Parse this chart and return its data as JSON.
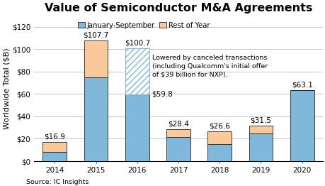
{
  "years": [
    "2014",
    "2015",
    "2016",
    "2017",
    "2018",
    "2019",
    "2020"
  ],
  "jan_sep": [
    8.0,
    75.0,
    59.8,
    21.5,
    15.5,
    24.5,
    63.1
  ],
  "rest_of_year": [
    8.9,
    32.7,
    0.0,
    6.9,
    11.1,
    7.0,
    0.0
  ],
  "hatched_top": [
    0.0,
    0.0,
    40.9,
    0.0,
    0.0,
    0.0,
    0.0
  ],
  "totals": [
    "$16.9",
    "$107.7",
    "$100.7",
    "$28.4",
    "$26.6",
    "$31.5",
    "$63.1"
  ],
  "extra_label_2016": "$59.8",
  "bar_color_jan": "#7EB8DA",
  "bar_color_rest": "#F9C99A",
  "hatch_pattern": "////",
  "title": "Value of Semiconductor M&A Agreements",
  "ylabel": "Worldwide Total ($B)",
  "yticks": [
    0,
    20,
    40,
    60,
    80,
    100,
    120
  ],
  "ytick_labels": [
    "$0",
    "$20",
    "$40",
    "$60",
    "$80",
    "$100",
    "$120"
  ],
  "ylim": [
    0,
    130
  ],
  "annotation": "Lowered by canceled transactions\n(including Qualcomm's initial offer\nof $39 billion for NXP).",
  "source": "Source: IC Insights",
  "legend_jan": "January-September",
  "legend_rest": "Rest of Year",
  "background_color": "#ffffff",
  "grid_color": "#bbbbbb",
  "title_fontsize": 11.5,
  "label_fontsize": 7.5,
  "axis_fontsize": 7.5,
  "bar_edge_color": "#222222",
  "bar_width": 0.58
}
